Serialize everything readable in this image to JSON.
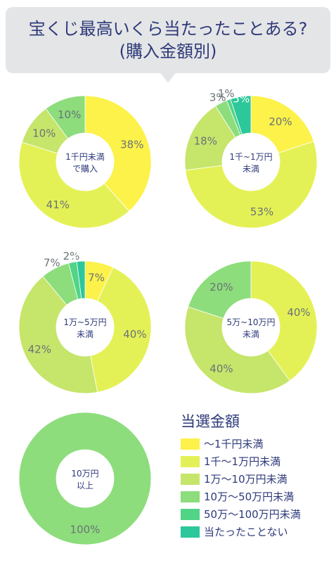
{
  "title": {
    "line1": "宝くじ最高いくら当たったことある?",
    "line2": "(購入金額別)"
  },
  "legend": {
    "title": "当選金額",
    "items": [
      {
        "label": "〜1千円未満",
        "color": "#fcf24a"
      },
      {
        "label": "1千〜1万円未満",
        "color": "#e4f156"
      },
      {
        "label": "1万〜10万円未満",
        "color": "#c6e56b"
      },
      {
        "label": "10万〜50万円未満",
        "color": "#8ddd7c"
      },
      {
        "label": "50万〜100万円未満",
        "color": "#52d487"
      },
      {
        "label": "当たったことない",
        "color": "#2cc79b"
      }
    ]
  },
  "chart_data": [
    {
      "type": "pie",
      "center_label": [
        "1千円未満",
        "で購入"
      ],
      "categories": [
        "〜1千円未満",
        "1千〜1万円未満",
        "1万〜10万円未満",
        "10万〜50万円未満"
      ],
      "values": [
        38,
        41,
        10,
        10
      ],
      "labels": [
        "38%",
        "41%",
        "10%",
        "10%"
      ]
    },
    {
      "type": "pie",
      "center_label": [
        "1千~1万円",
        "未満"
      ],
      "categories": [
        "〜1千円未満",
        "1千〜1万円未満",
        "1万〜10万円未満",
        "10万〜50万円未満",
        "50万〜100万円未満",
        "当たったことない"
      ],
      "values": [
        20,
        53,
        18,
        3,
        1,
        5
      ],
      "labels": [
        "20%",
        "53%",
        "18%",
        "3%",
        "1%",
        "5%"
      ]
    },
    {
      "type": "pie",
      "center_label": [
        "1万~5万円",
        "未満"
      ],
      "categories": [
        "〜1千円未満",
        "1千〜1万円未満",
        "1万〜10万円未満",
        "10万〜50万円未満",
        "50万〜100万円未満",
        "当たったことない"
      ],
      "values": [
        7,
        40,
        42,
        7,
        2,
        2
      ],
      "labels": [
        "7%",
        "40%",
        "42%",
        "7%",
        "2%",
        "2%"
      ]
    },
    {
      "type": "pie",
      "center_label": [
        "5万~10万円",
        "未満"
      ],
      "categories": [
        "1千〜1万円未満",
        "1万〜10万円未満",
        "10万〜50万円未満"
      ],
      "values": [
        40,
        40,
        20
      ],
      "labels": [
        "40%",
        "40%",
        "20%"
      ]
    },
    {
      "type": "pie",
      "center_label": [
        "10万円",
        "以上"
      ],
      "categories": [
        "10万〜50万円未満"
      ],
      "values": [
        100
      ],
      "labels": [
        "100%"
      ]
    }
  ]
}
